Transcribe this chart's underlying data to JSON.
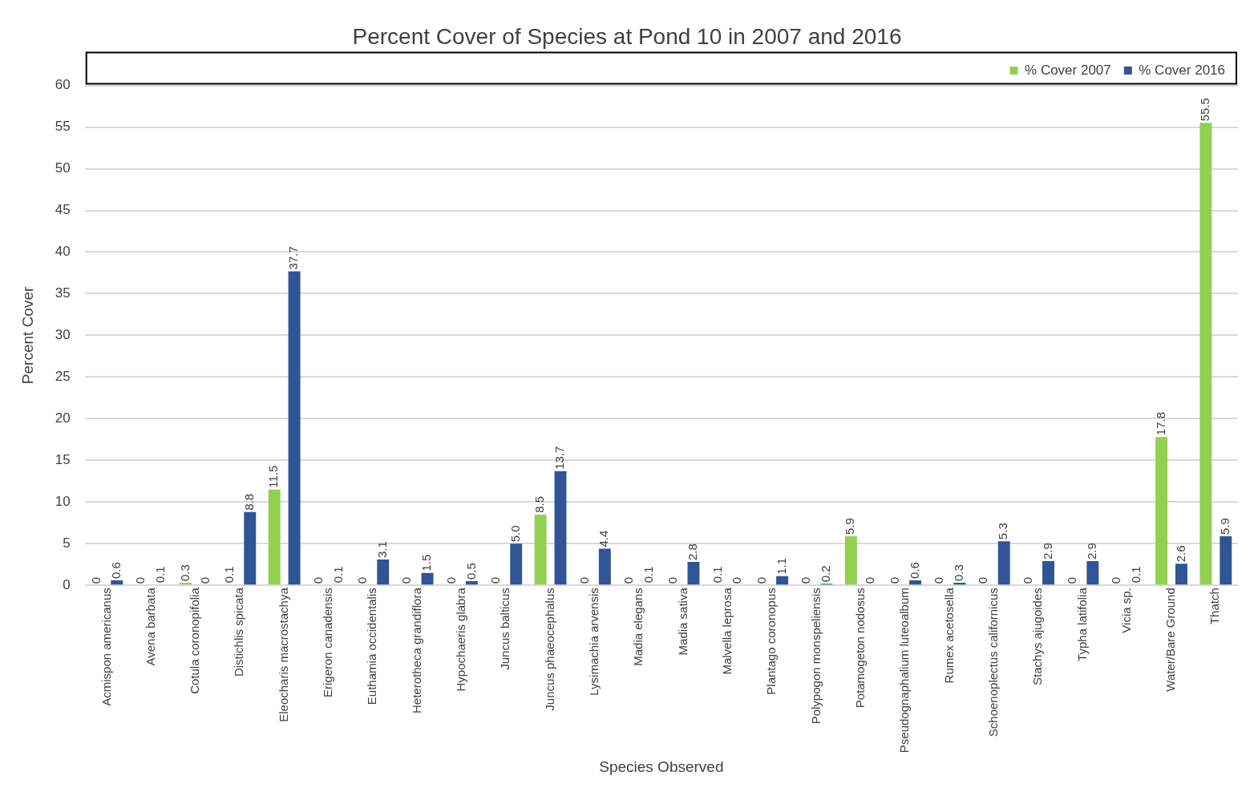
{
  "chart_data": {
    "type": "bar",
    "title": "Percent Cover of Species at Pond 10 in 2007 and 2016",
    "xlabel": "Species Observed",
    "ylabel": "Percent Cover",
    "categories": [
      "Acmispon americanus",
      "Avena barbata",
      "Cotula coronopifolia",
      "Distichlis spicata",
      "Eleocharis macrostachya",
      "Erigeron canadensis",
      "Euthamia occidentalis",
      "Heterotheca grandiflora",
      "Hypochaeris glabra",
      "Juncus balticus",
      "Juncus phaeocephalus",
      "Lysimachia arvensis",
      "Madia elegans",
      "Madia sativa",
      "Malvella leprosa",
      "Plantago coronopus",
      "Polypogon monspeliensis",
      "Potamogeton nodosus",
      "Pseudognaphalium luteoalbum",
      "Rumex acetosella",
      "Schoenoplectus californicus",
      "Stachys ajugoides",
      "Typha latifolia",
      "Vicia sp.",
      "Water/Bare Ground",
      "Thatch"
    ],
    "series": [
      {
        "name": "% Cover 2007",
        "color": "#92d050",
        "values": [
          0,
          0,
          0.3,
          0.1,
          11.5,
          0,
          0,
          0,
          0,
          0,
          8.5,
          0,
          0,
          0,
          0.1,
          0,
          0,
          5.9,
          0,
          0,
          0,
          0,
          0,
          0,
          17.8,
          55.5
        ],
        "value_labels": [
          "0",
          "0",
          "0.3",
          "0.1",
          "11.5",
          "0",
          "0",
          "0",
          "0",
          "0",
          "8.5",
          "0",
          "0",
          "0",
          "0.1",
          "0",
          "0",
          "5.9",
          "0",
          "0",
          "0",
          "0",
          "0",
          "0",
          "17.8",
          "55.5"
        ]
      },
      {
        "name": "% Cover 2016",
        "color": "#2f5597",
        "values": [
          0.6,
          0.1,
          0,
          8.8,
          37.7,
          0.1,
          3.1,
          1.5,
          0.5,
          5.0,
          13.7,
          4.4,
          0.1,
          2.8,
          0,
          1.1,
          0.2,
          0,
          0.6,
          0.3,
          5.3,
          2.9,
          2.9,
          0.1,
          2.6,
          5.9
        ],
        "value_labels": [
          "0.6",
          "0.1",
          "0",
          "8.8",
          "37.7",
          "0.1",
          "3.1",
          "1.5",
          "0.5",
          "5.0",
          "13.7",
          "4.4",
          "0.1",
          "2.8",
          "0",
          "1.1",
          "0.2",
          "0",
          "0.6",
          "0.3",
          "5.3",
          "2.9",
          "2.9",
          "0.1",
          "2.6",
          "5.9"
        ]
      }
    ],
    "ylim": [
      0,
      60
    ],
    "yticks": [
      0,
      5,
      10,
      15,
      20,
      25,
      30,
      35,
      40,
      45,
      50,
      55,
      60
    ],
    "grid": "y",
    "legend": "top right"
  }
}
